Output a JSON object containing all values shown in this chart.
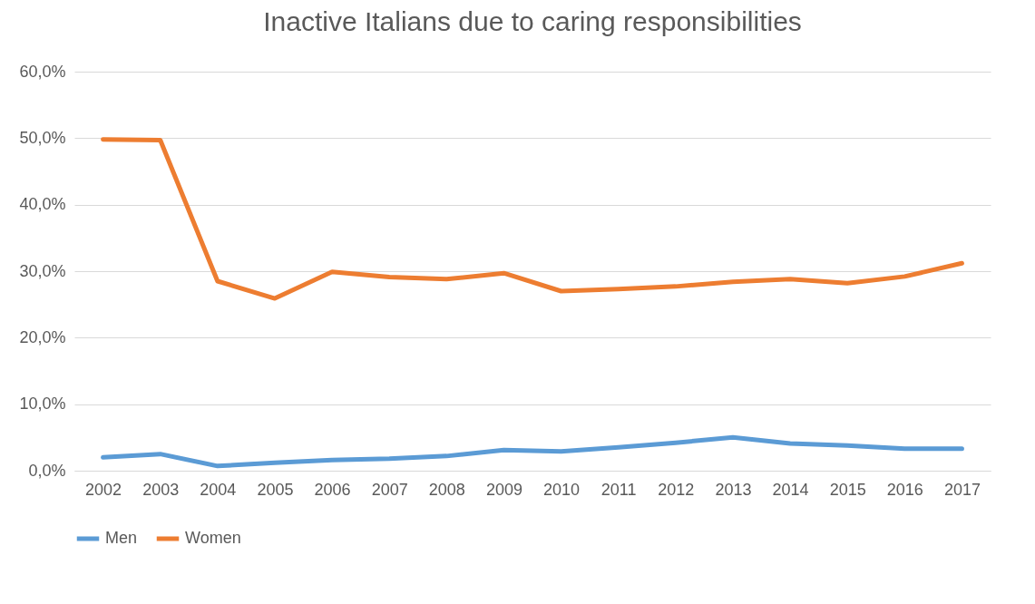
{
  "chart_data": {
    "type": "line",
    "title": "Inactive Italians due to caring responsibilities",
    "categories": [
      "2002",
      "2003",
      "2004",
      "2005",
      "2006",
      "2007",
      "2008",
      "2009",
      "2010",
      "2011",
      "2012",
      "2013",
      "2014",
      "2015",
      "2016",
      "2017"
    ],
    "series": [
      {
        "name": "Men",
        "color": "#5b9bd5",
        "values": [
          2.0,
          2.5,
          0.7,
          1.2,
          1.6,
          1.8,
          2.2,
          3.1,
          2.9,
          3.5,
          4.2,
          5.0,
          4.1,
          3.8,
          3.3,
          3.3
        ]
      },
      {
        "name": "Women",
        "color": "#ed7d31",
        "values": [
          49.8,
          49.7,
          28.5,
          25.9,
          29.9,
          29.1,
          28.8,
          29.7,
          27.0,
          27.3,
          27.7,
          28.4,
          28.8,
          28.2,
          29.2,
          31.2
        ]
      }
    ],
    "ylim": [
      0,
      60
    ],
    "yticks": [
      {
        "value": 0,
        "label": "0,0%"
      },
      {
        "value": 10,
        "label": "10,0%"
      },
      {
        "value": 20,
        "label": "20,0%"
      },
      {
        "value": 30,
        "label": "30,0%"
      },
      {
        "value": 40,
        "label": "40,0%"
      },
      {
        "value": 50,
        "label": "50,0%"
      },
      {
        "value": 60,
        "label": "60,0%"
      }
    ],
    "grid": "y",
    "legend": "bottom",
    "marker": "none",
    "line_style": "solid"
  }
}
